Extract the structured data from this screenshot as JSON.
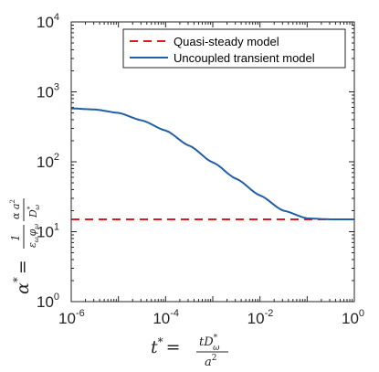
{
  "chart_data": {
    "type": "line",
    "x_scale": "log",
    "y_scale": "log",
    "xlim": [
      1e-06,
      1
    ],
    "ylim": [
      1,
      10000
    ],
    "x_ticks": [
      {
        "value": 1e-06,
        "base": "10",
        "exp": "-6"
      },
      {
        "value": 0.0001,
        "base": "10",
        "exp": "-4"
      },
      {
        "value": 0.01,
        "base": "10",
        "exp": "-2"
      },
      {
        "value": 1,
        "base": "10",
        "exp": "0"
      }
    ],
    "y_ticks": [
      {
        "value": 1,
        "base": "10",
        "exp": "0"
      },
      {
        "value": 10,
        "base": "10",
        "exp": "1"
      },
      {
        "value": 100,
        "base": "10",
        "exp": "2"
      },
      {
        "value": 1000,
        "base": "10",
        "exp": "3"
      },
      {
        "value": 10000,
        "base": "10",
        "exp": "4"
      }
    ],
    "xlabel": {
      "lhs": "t",
      "lhs_sup": "*",
      "eq": "=",
      "num": "tD",
      "num_sup": "*",
      "num_sub": "ω",
      "den": "a",
      "den_sup": "2"
    },
    "ylabel": {
      "lhs": "α",
      "lhs_sup": "*",
      "eq": "=",
      "f1_num": "1",
      "f1_den": "ε",
      "f1_den_sub": "ω",
      "f1_den2": "φ",
      "f1_den2_sub": "ω",
      "f2_num": "α a",
      "f2_num_sup": "2",
      "f2_den": "D",
      "f2_den_sup": "*",
      "f2_den_sub": "ω"
    },
    "legend_position": "top-right",
    "series": [
      {
        "name": "Quasi-steady model",
        "color": "#e0191f",
        "style": "dashed",
        "x": [
          1e-06,
          1
        ],
        "y": [
          15,
          15
        ]
      },
      {
        "name": "Uncoupled transient model",
        "color": "#1f5fa8",
        "style": "solid",
        "x": [
          1e-06,
          3.16e-06,
          1e-05,
          3.16e-05,
          0.0001,
          0.000316,
          0.001,
          0.00316,
          0.01,
          0.0316,
          0.1,
          0.316,
          1
        ],
        "y": [
          580,
          560,
          500,
          390,
          280,
          170,
          98,
          57,
          33,
          20,
          15.5,
          15,
          15
        ]
      }
    ]
  }
}
